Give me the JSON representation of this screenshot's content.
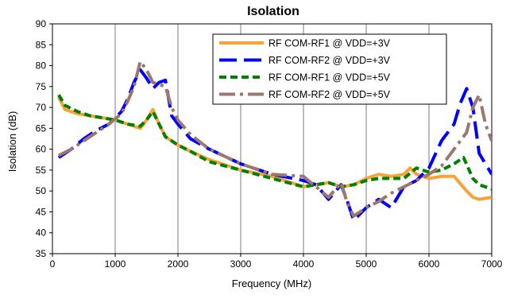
{
  "chart_data": {
    "type": "line",
    "title": "Isolation",
    "xlabel": "Frequency (MHz)",
    "ylabel": "Isolation (dB)",
    "xlim": [
      0,
      7000
    ],
    "ylim": [
      35,
      90
    ],
    "x_ticks": [
      0,
      1000,
      2000,
      3000,
      4000,
      5000,
      6000,
      7000
    ],
    "y_ticks": [
      35,
      40,
      45,
      50,
      55,
      60,
      65,
      70,
      75,
      80,
      85,
      90
    ],
    "grid": {
      "vertical": true,
      "horizontal": false
    },
    "legend_position": "top-right",
    "series": [
      {
        "name": "RF COM-RF1 @ VDD=+3V",
        "color": "#f7a336",
        "style": "solid",
        "x": [
          100,
          200,
          400,
          600,
          800,
          1000,
          1200,
          1400,
          1500,
          1600,
          1700,
          1800,
          2000,
          2200,
          2500,
          3000,
          3500,
          4000,
          4200,
          4400,
          4600,
          4800,
          5000,
          5200,
          5400,
          5600,
          5700,
          5800,
          6000,
          6200,
          6400,
          6600,
          6700,
          6800,
          7000
        ],
        "y": [
          72.5,
          69.5,
          68.5,
          68,
          67.5,
          67,
          66,
          65,
          67,
          69.5,
          66,
          63,
          61,
          59.5,
          57.5,
          55,
          53.5,
          51,
          51.5,
          52,
          51,
          51.5,
          53,
          54,
          53.5,
          54,
          55.5,
          54,
          53,
          53.5,
          53.5,
          50,
          48.5,
          48,
          48.5
        ]
      },
      {
        "name": "RF COM-RF2 @ VDD=+3V",
        "color": "#0000ff",
        "style": "longdash",
        "x": [
          100,
          300,
          500,
          700,
          900,
          1100,
          1200,
          1300,
          1400,
          1500,
          1600,
          1700,
          1800,
          1900,
          2000,
          2200,
          2500,
          3000,
          3500,
          4000,
          4200,
          4400,
          4600,
          4700,
          4800,
          4900,
          5000,
          5200,
          5400,
          5600,
          5800,
          6000,
          6200,
          6400,
          6500,
          6600,
          6700,
          6800,
          7000
        ],
        "y": [
          58,
          60,
          62.5,
          64.5,
          66,
          69,
          72,
          76,
          79,
          77,
          74.5,
          76,
          76.5,
          68,
          66,
          62.5,
          60,
          56.5,
          54,
          52.5,
          51.5,
          48,
          51.5,
          47.5,
          43,
          44.5,
          46,
          48,
          46,
          51,
          52.5,
          55.5,
          62,
          66,
          71,
          74.5,
          70,
          59,
          54
        ]
      },
      {
        "name": "RF COM-RF1 @ VDD=+5V",
        "color": "#008000",
        "style": "dash",
        "x": [
          100,
          200,
          400,
          600,
          800,
          1000,
          1200,
          1400,
          1500,
          1600,
          1700,
          1800,
          2000,
          2200,
          2500,
          3000,
          3500,
          4000,
          4200,
          4400,
          4600,
          4800,
          5000,
          5200,
          5400,
          5600,
          5800,
          6000,
          6200,
          6400,
          6550,
          6700,
          6800,
          7000
        ],
        "y": [
          73,
          70.5,
          69,
          68,
          67.5,
          67,
          66,
          65.5,
          67,
          69,
          66,
          63,
          61,
          59.5,
          57,
          55,
          53,
          51,
          51.5,
          52,
          51,
          51.5,
          52.5,
          53,
          53,
          53,
          55.5,
          54.5,
          55,
          56.5,
          58,
          53,
          51.5,
          50.5
        ]
      },
      {
        "name": "RF COM-RF2 @ VDD=+5V",
        "color": "#9b7770",
        "style": "dashdot",
        "x": [
          100,
          300,
          500,
          700,
          900,
          1100,
          1200,
          1300,
          1400,
          1500,
          1600,
          1700,
          1800,
          1900,
          2000,
          2200,
          2500,
          3000,
          3500,
          4000,
          4200,
          4400,
          4600,
          4700,
          4800,
          4900,
          5000,
          5200,
          5400,
          5600,
          5800,
          6000,
          6200,
          6400,
          6600,
          6700,
          6800,
          6900,
          7000
        ],
        "y": [
          58.5,
          60,
          62,
          64,
          66,
          68.5,
          71.5,
          75,
          81,
          79,
          76,
          75.5,
          75,
          70,
          67,
          63.5,
          60,
          56.5,
          54,
          53.5,
          51,
          48.5,
          52,
          47,
          44,
          45,
          46,
          47.5,
          49.5,
          51,
          52.5,
          54,
          56,
          60,
          64,
          70,
          73,
          66,
          62
        ]
      }
    ]
  }
}
